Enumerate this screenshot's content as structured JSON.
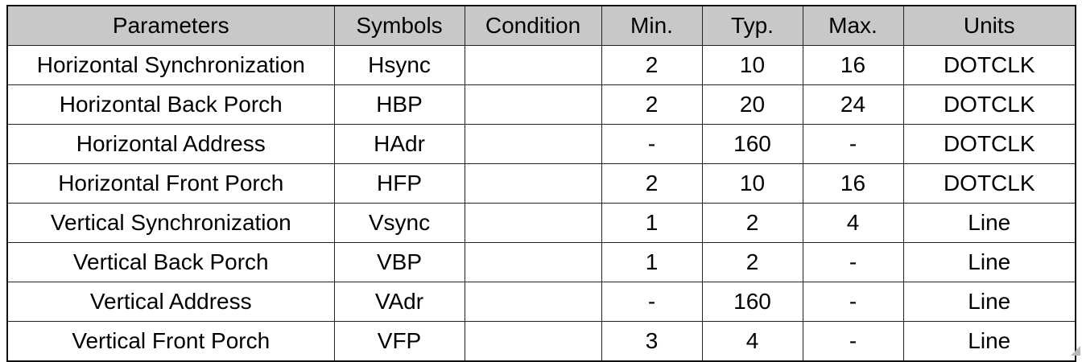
{
  "table": {
    "headers": [
      "Parameters",
      "Symbols",
      "Condition",
      "Min.",
      "Typ.",
      "Max.",
      "Units"
    ],
    "rows": [
      [
        "Horizontal Synchronization",
        "Hsync",
        "",
        "2",
        "10",
        "16",
        "DOTCLK"
      ],
      [
        "Horizontal Back Porch",
        "HBP",
        "",
        "2",
        "20",
        "24",
        "DOTCLK"
      ],
      [
        "Horizontal Address",
        "HAdr",
        "",
        "-",
        "160",
        "-",
        "DOTCLK"
      ],
      [
        "Horizontal Front Porch",
        "HFP",
        "",
        "2",
        "10",
        "16",
        "DOTCLK"
      ],
      [
        "Vertical Synchronization",
        "Vsync",
        "",
        "1",
        "2",
        "4",
        "Line"
      ],
      [
        "Vertical Back Porch",
        "VBP",
        "",
        "1",
        "2",
        "-",
        "Line"
      ],
      [
        "Vertical Address",
        "VAdr",
        "",
        "-",
        "160",
        "-",
        "Line"
      ],
      [
        "Vertical Front Porch",
        "VFP",
        "",
        "3",
        "4",
        "-",
        "Line"
      ]
    ]
  }
}
